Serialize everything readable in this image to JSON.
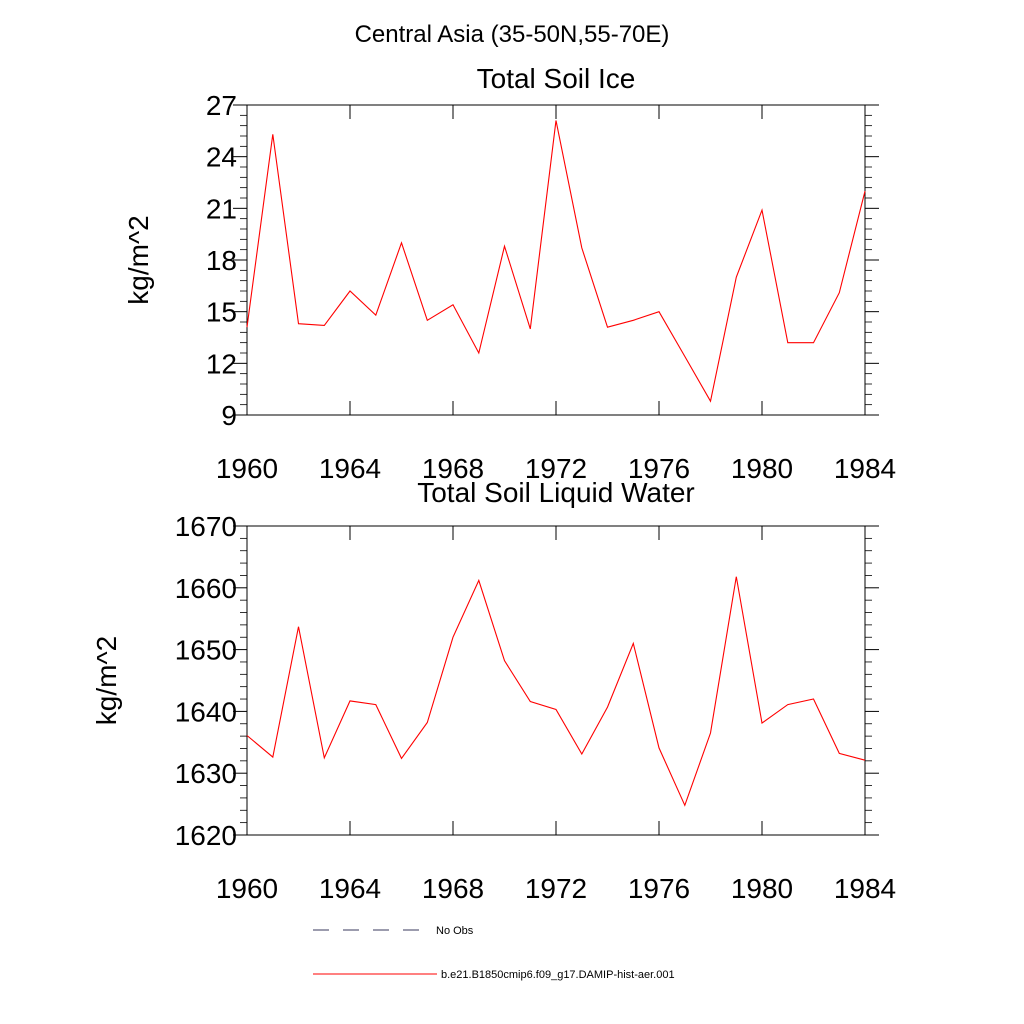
{
  "figure": {
    "title": "Central Asia (35-50N,55-70E)"
  },
  "chart_data": [
    {
      "type": "line",
      "title": "Total Soil Ice",
      "xlabel": "",
      "ylabel": "kg/m^2",
      "xlim": [
        1960,
        1984
      ],
      "ylim": [
        9,
        27
      ],
      "x_ticks": [
        1960,
        1964,
        1968,
        1972,
        1976,
        1980,
        1984
      ],
      "y_ticks": [
        9,
        12,
        15,
        18,
        21,
        24,
        27
      ],
      "series": [
        {
          "name": "b.e21.B1850cmip6.f09_g17.DAMIP-hist-aer.001",
          "color": "#ff0000",
          "x": [
            1960,
            1961,
            1962,
            1963,
            1964,
            1965,
            1966,
            1967,
            1968,
            1969,
            1970,
            1971,
            1972,
            1973,
            1974,
            1975,
            1976,
            1977,
            1978,
            1979,
            1980,
            1981,
            1982,
            1983,
            1984
          ],
          "values": [
            14.1,
            25.3,
            14.3,
            14.2,
            16.2,
            14.8,
            19.0,
            14.5,
            15.4,
            12.6,
            18.8,
            14.0,
            26.1,
            18.7,
            14.1,
            14.5,
            15.0,
            12.4,
            9.8,
            17.0,
            20.9,
            13.2,
            13.2,
            16.1,
            22.0
          ]
        }
      ]
    },
    {
      "type": "line",
      "title": "Total Soil Liquid Water",
      "xlabel": "",
      "ylabel": "kg/m^2",
      "xlim": [
        1960,
        1984
      ],
      "ylim": [
        1620,
        1670
      ],
      "x_ticks": [
        1960,
        1964,
        1968,
        1972,
        1976,
        1980,
        1984
      ],
      "y_ticks": [
        1620,
        1630,
        1640,
        1650,
        1660,
        1670
      ],
      "series": [
        {
          "name": "b.e21.B1850cmip6.f09_g17.DAMIP-hist-aer.001",
          "color": "#ff0000",
          "x": [
            1960,
            1961,
            1962,
            1963,
            1964,
            1965,
            1966,
            1967,
            1968,
            1969,
            1970,
            1971,
            1972,
            1973,
            1974,
            1975,
            1976,
            1977,
            1978,
            1979,
            1980,
            1981,
            1982,
            1983,
            1984
          ],
          "values": [
            1636.1,
            1632.6,
            1653.7,
            1632.5,
            1641.7,
            1641.1,
            1632.4,
            1638.2,
            1652.0,
            1661.2,
            1648.2,
            1641.6,
            1640.3,
            1633.1,
            1640.7,
            1651.0,
            1634.1,
            1624.8,
            1636.5,
            1661.8,
            1638.1,
            1641.1,
            1642.0,
            1633.2,
            1632.1
          ]
        }
      ]
    }
  ],
  "legend": {
    "items": [
      {
        "label": "No Obs",
        "color": "#3a3a5c",
        "style": "dashed"
      },
      {
        "label": "b.e21.B1850cmip6.f09_g17.DAMIP-hist-aer.001",
        "color": "#ff0000",
        "style": "solid"
      }
    ]
  }
}
